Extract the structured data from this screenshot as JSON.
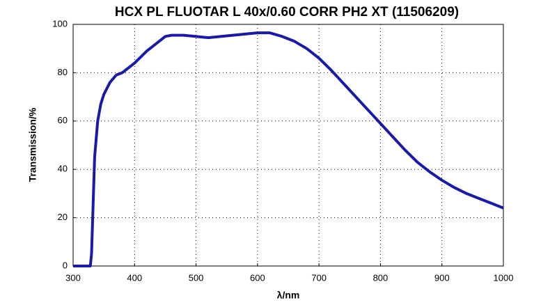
{
  "chart_data": {
    "type": "line",
    "title": "HCX PL FLUOTAR L 40x/0.60 CORR PH2 XT (11506209)",
    "x_label": "λ/nm",
    "y_label": "Transmission/%",
    "x": [
      300,
      320,
      328,
      330,
      335,
      340,
      345,
      350,
      360,
      370,
      380,
      400,
      420,
      440,
      450,
      460,
      480,
      500,
      520,
      540,
      560,
      580,
      600,
      620,
      640,
      660,
      680,
      700,
      720,
      740,
      760,
      780,
      800,
      820,
      840,
      860,
      880,
      900,
      920,
      940,
      960,
      980,
      1000
    ],
    "series": [
      {
        "name": "Transmission",
        "color": "#1a1aa8",
        "values": [
          0,
          0,
          0,
          5,
          45,
          60,
          67,
          71,
          76,
          79,
          80,
          84,
          89,
          93,
          95,
          95.5,
          95.5,
          95,
          94.5,
          95,
          95.5,
          96,
          96.5,
          96.5,
          95,
          93,
          90,
          86,
          81,
          75.5,
          70,
          64.5,
          59,
          53.5,
          48,
          43,
          39,
          35.5,
          32.5,
          30,
          28,
          26,
          24
        ]
      }
    ],
    "xlim": [
      300,
      1000
    ],
    "xticks": [
      300,
      400,
      500,
      600,
      700,
      800,
      900,
      1000
    ],
    "ylim": [
      0,
      100
    ],
    "yticks": [
      0,
      20,
      40,
      60,
      80,
      100
    ],
    "grid": true
  }
}
